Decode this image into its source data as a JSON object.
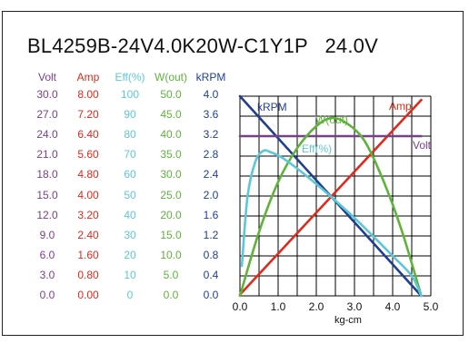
{
  "title": "BL4259B-24V4.0K20W-C1Y1P   24.0V",
  "colors": {
    "volt": "#7a3f8c",
    "amp": "#e0291b",
    "eff": "#5bc8d8",
    "wout": "#5fb33a",
    "krpm": "#1f3f8f",
    "grid": "#000000"
  },
  "table": {
    "headers": [
      {
        "key": "volt",
        "label": "Volt"
      },
      {
        "key": "amp",
        "label": "Amp"
      },
      {
        "key": "eff",
        "label": "Eff(%)"
      },
      {
        "key": "wout",
        "label": "W(out)"
      },
      {
        "key": "krpm",
        "label": "kRPM"
      }
    ],
    "rows": [
      [
        "30.0",
        "8.00",
        "100",
        "50.0",
        "4.0"
      ],
      [
        "27.0",
        "7.20",
        "90",
        "45.0",
        "3.6"
      ],
      [
        "24.0",
        "6.40",
        "80",
        "40.0",
        "3.2"
      ],
      [
        "21.0",
        "5.60",
        "70",
        "35.0",
        "2.8"
      ],
      [
        "18.0",
        "4.80",
        "60",
        "30.0",
        "2.4"
      ],
      [
        "15.0",
        "4.00",
        "50",
        "25.0",
        "2.0"
      ],
      [
        "12.0",
        "3.20",
        "40",
        "20.0",
        "1.6"
      ],
      [
        "9.0",
        "2.40",
        "30",
        "15.0",
        "1.2"
      ],
      [
        "6.0",
        "1.60",
        "20",
        "10.0",
        "0.8"
      ],
      [
        "3.0",
        "0.80",
        "10",
        "5.0",
        "0.4"
      ],
      [
        "0.0",
        "0.00",
        "0",
        "0.0",
        "0.0"
      ]
    ]
  },
  "chart_data": {
    "type": "line",
    "xlabel": "kg-cm",
    "xlim": [
      0,
      5.0
    ],
    "xticks": [
      "0.0",
      "1.0",
      "2.0",
      "3.0",
      "4.0",
      "5.0"
    ],
    "ylim_krpm": [
      0,
      4.0
    ],
    "grid": true,
    "series": [
      {
        "name": "kRPM",
        "axis": "krpm",
        "points": [
          [
            0,
            4.0
          ],
          [
            4.75,
            0
          ]
        ]
      },
      {
        "name": "Amp",
        "axis": "amp",
        "points": [
          [
            0,
            0.05
          ],
          [
            4.75,
            7.85
          ]
        ]
      },
      {
        "name": "Volt",
        "axis": "volt",
        "points": [
          [
            0,
            24.0
          ],
          [
            4.75,
            24.0
          ]
        ]
      },
      {
        "name": "W(out)",
        "axis": "wout",
        "points": [
          [
            0,
            0
          ],
          [
            0.5,
            16
          ],
          [
            1.0,
            28.5
          ],
          [
            1.5,
            37
          ],
          [
            2.0,
            42.5
          ],
          [
            2.375,
            44.5
          ],
          [
            2.75,
            43.5
          ],
          [
            3.25,
            39
          ],
          [
            3.75,
            29
          ],
          [
            4.25,
            16
          ],
          [
            4.75,
            0
          ]
        ]
      },
      {
        "name": "Eff(%)",
        "axis": "eff",
        "points": [
          [
            0.05,
            15
          ],
          [
            0.2,
            50
          ],
          [
            0.4,
            67
          ],
          [
            0.6,
            72.5
          ],
          [
            0.8,
            72
          ],
          [
            1.2,
            68
          ],
          [
            2.0,
            56
          ],
          [
            3.0,
            39
          ],
          [
            4.0,
            20
          ],
          [
            4.5,
            10
          ],
          [
            4.75,
            0
          ]
        ]
      }
    ]
  }
}
